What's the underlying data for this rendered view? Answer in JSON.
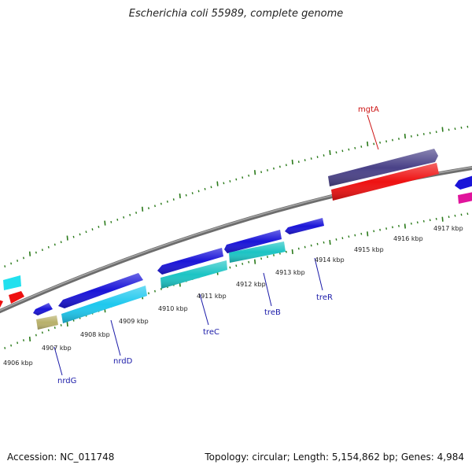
{
  "title": "Escherichia coli 55989, complete genome",
  "footer": {
    "accession": "Accession: NC_011748",
    "summary": "Topology: circular; Length: 5,154,862 bp; Genes: 4,984"
  },
  "colors": {
    "tick": "#2a7a1a",
    "backbone": "#808080",
    "gene_label_blue": "#1a1aa8",
    "gene_label_red": "#cc1111"
  },
  "kbp_labels": [
    {
      "id": "4906",
      "text": "4906 kbp"
    },
    {
      "id": "4907",
      "text": "4907 kbp"
    },
    {
      "id": "4908",
      "text": "4908 kbp"
    },
    {
      "id": "4909",
      "text": "4909 kbp"
    },
    {
      "id": "4910",
      "text": "4910 kbp"
    },
    {
      "id": "4911",
      "text": "4911 kbp"
    },
    {
      "id": "4912",
      "text": "4912 kbp"
    },
    {
      "id": "4913",
      "text": "4913 kbp"
    },
    {
      "id": "4914",
      "text": "4914 kbp"
    },
    {
      "id": "4915",
      "text": "4915 kbp"
    },
    {
      "id": "4916",
      "text": "4916 kbp"
    },
    {
      "id": "4917",
      "text": "4917 kbp"
    }
  ],
  "gene_labels": [
    {
      "id": "nrdG",
      "text": "nrdG"
    },
    {
      "id": "nrdD",
      "text": "nrdD"
    },
    {
      "id": "treC",
      "text": "treC"
    },
    {
      "id": "treB",
      "text": "treB"
    },
    {
      "id": "treR",
      "text": "treR"
    },
    {
      "id": "mgtA",
      "text": "mgtA"
    }
  ]
}
